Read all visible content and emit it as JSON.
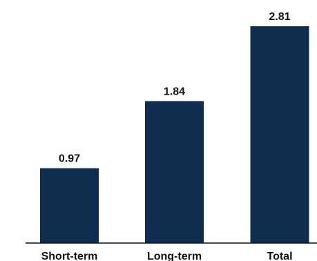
{
  "chart_data": {
    "type": "bar",
    "categories": [
      "Short-term",
      "Long-term",
      "Total"
    ],
    "values": [
      0.97,
      1.84,
      2.81
    ],
    "ylim": [
      0,
      2.81
    ],
    "grid": false,
    "bar_color": "#0f2d4f",
    "axis_color": "#111111"
  }
}
